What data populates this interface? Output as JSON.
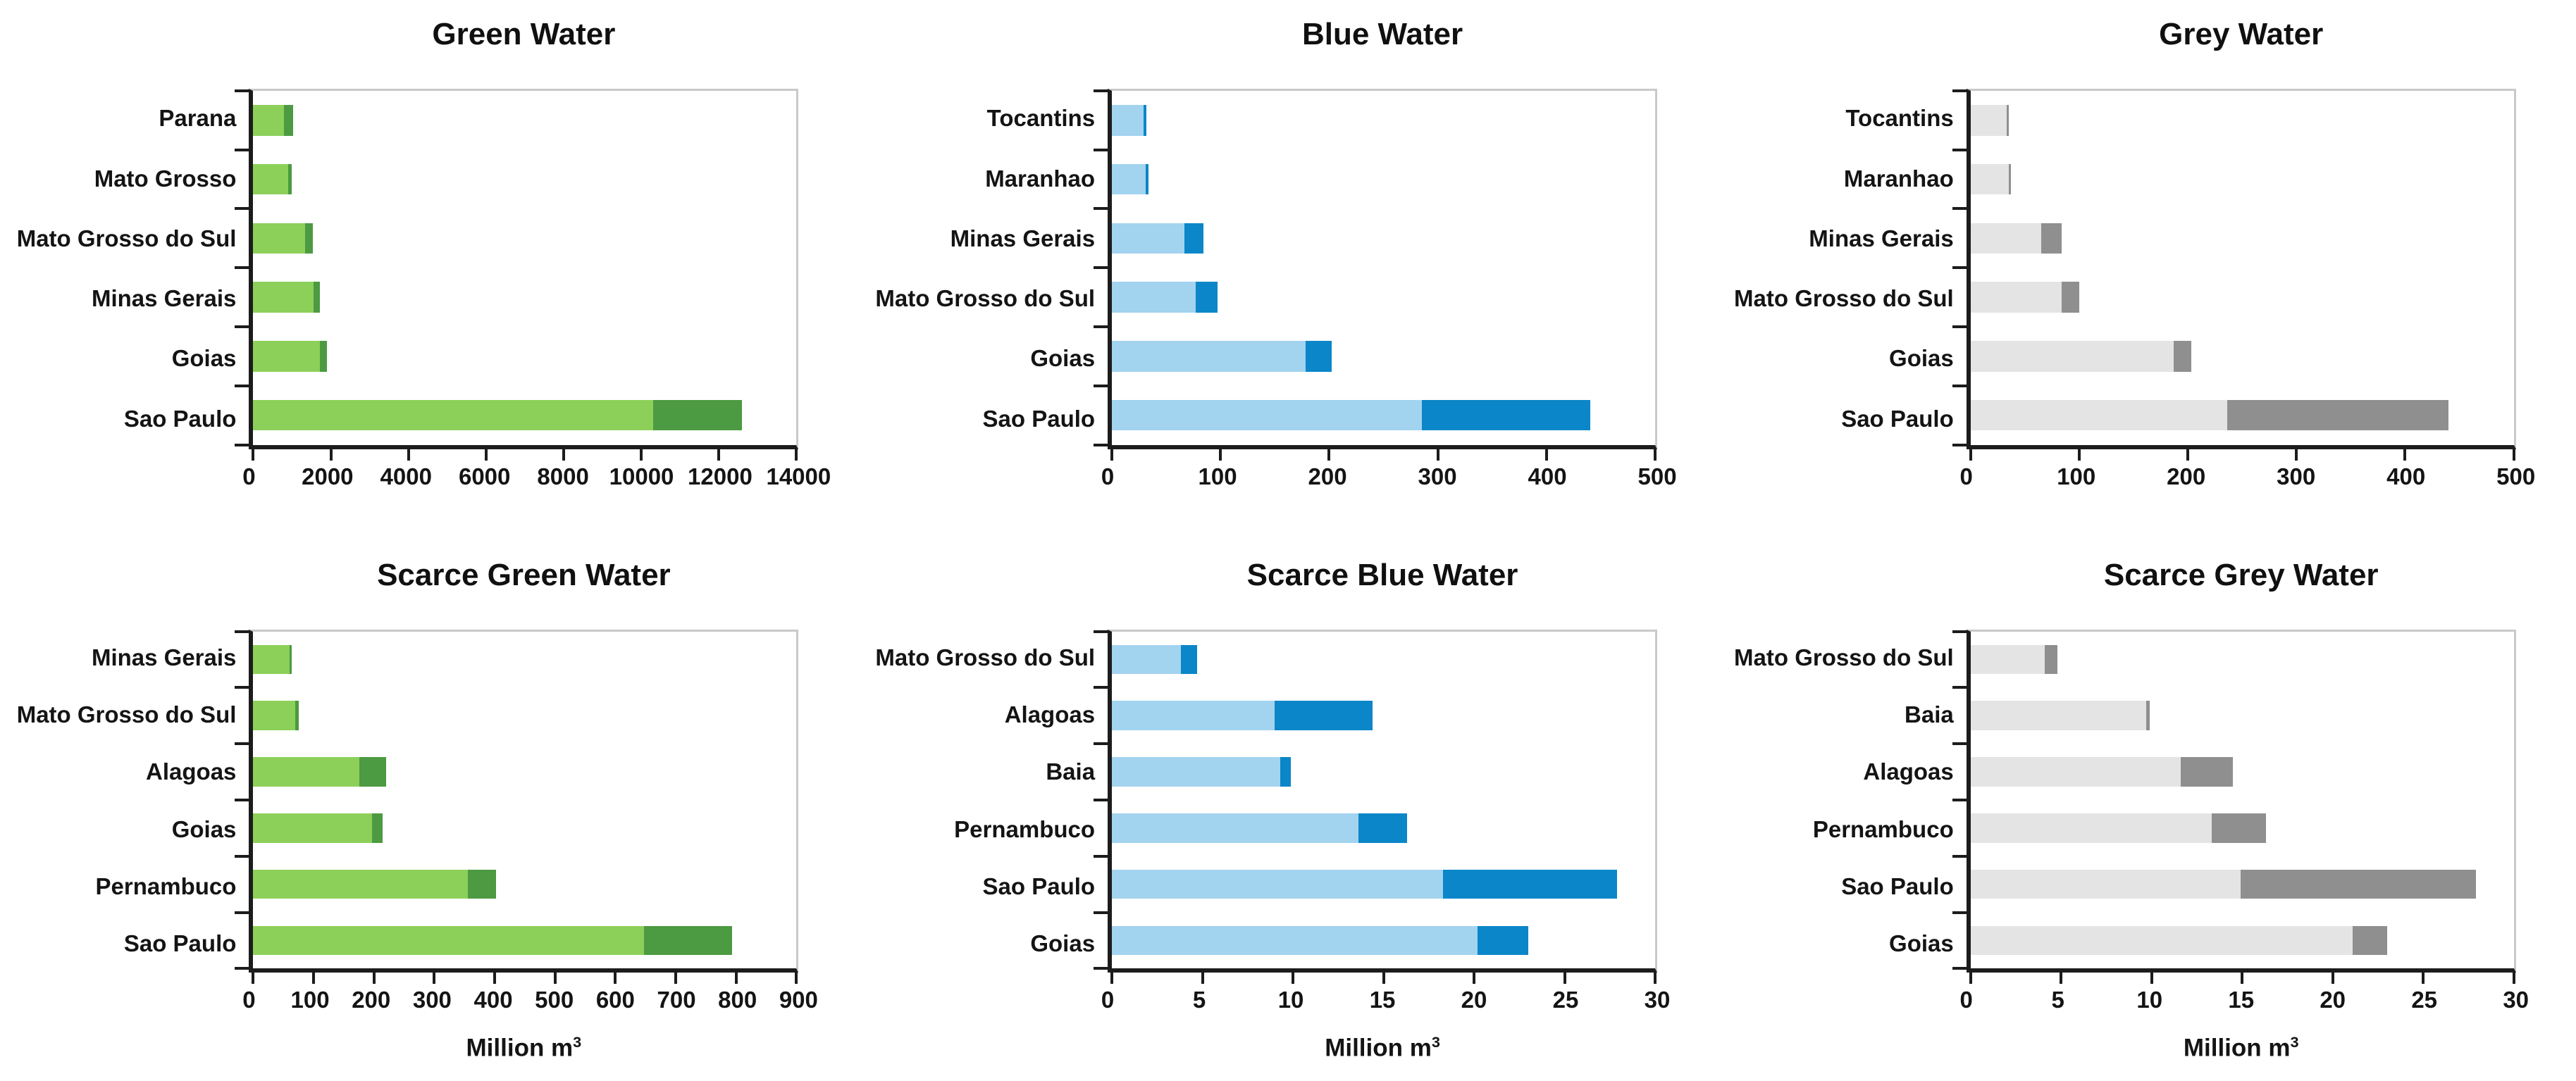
{
  "page": {
    "background": "#ffffff",
    "text_color": "#141414",
    "axis_color": "#1c1c1c",
    "plot_border_color": "#c9c9c9"
  },
  "unit_label": {
    "text": "Million m",
    "sup": "3"
  },
  "chart_data": [
    {
      "id": "green-water",
      "type": "bar",
      "orientation": "horizontal",
      "title": "Green Water",
      "grid": false,
      "legend": null,
      "colors": {
        "light": "#8cd05a",
        "dark": "#4c9a41"
      },
      "xlim": [
        0,
        14000
      ],
      "xticks": [
        0,
        2000,
        4000,
        6000,
        8000,
        10000,
        12000,
        14000
      ],
      "xlabel": "",
      "categories": [
        "Parana",
        "Mato Grosso",
        "Mato Grosso do Sul",
        "Minas Gerais",
        "Goias",
        "Sao Paulo"
      ],
      "series": [
        {
          "name": "light-shade",
          "values": [
            800,
            900,
            1340,
            1550,
            1720,
            10300
          ]
        },
        {
          "name": "dark-shade",
          "values": [
            230,
            100,
            190,
            160,
            180,
            2300
          ]
        }
      ]
    },
    {
      "id": "blue-water",
      "type": "bar",
      "orientation": "horizontal",
      "title": "Blue Water",
      "grid": false,
      "legend": null,
      "colors": {
        "light": "#a2d3ef",
        "dark": "#0b86c8"
      },
      "xlim": [
        0,
        500
      ],
      "xticks": [
        0,
        100,
        200,
        300,
        400,
        500
      ],
      "xlabel": "",
      "categories": [
        "Tocantins",
        "Maranhao",
        "Minas Gerais",
        "Mato Grosso do Sul",
        "Goias",
        "Sao Paulo"
      ],
      "series": [
        {
          "name": "light-shade",
          "values": [
            29,
            31,
            67,
            77,
            178,
            285
          ]
        },
        {
          "name": "dark-shade",
          "values": [
            3,
            3,
            17,
            20,
            24,
            155
          ]
        }
      ]
    },
    {
      "id": "grey-water",
      "type": "bar",
      "orientation": "horizontal",
      "title": "Grey Water",
      "grid": false,
      "legend": null,
      "colors": {
        "light": "#e4e4e4",
        "dark": "#8f8f8f"
      },
      "xlim": [
        0,
        500
      ],
      "xticks": [
        0,
        100,
        200,
        300,
        400,
        500
      ],
      "xlabel": "",
      "categories": [
        "Tocantins",
        "Maranhao",
        "Minas Gerais",
        "Mato Grosso do Sul",
        "Goias",
        "Sao Paulo"
      ],
      "series": [
        {
          "name": "light-shade",
          "values": [
            33,
            35,
            65,
            84,
            187,
            236
          ]
        },
        {
          "name": "dark-shade",
          "values": [
            2,
            2,
            19,
            16,
            16,
            204
          ]
        }
      ]
    },
    {
      "id": "scarce-green-water",
      "type": "bar",
      "orientation": "horizontal",
      "title": "Scarce Green Water",
      "grid": false,
      "legend": null,
      "colors": {
        "light": "#8cd05a",
        "dark": "#4c9a41"
      },
      "xlim": [
        0,
        900
      ],
      "xticks": [
        0,
        100,
        200,
        300,
        400,
        500,
        600,
        700,
        800,
        900
      ],
      "xlabel": "Million m³",
      "categories": [
        "Minas Gerais",
        "Mato Grosso do Sul",
        "Alagoas",
        "Goias",
        "Pernambuco",
        "Sao Paulo"
      ],
      "series": [
        {
          "name": "light-shade",
          "values": [
            60,
            70,
            176,
            197,
            355,
            647
          ]
        },
        {
          "name": "dark-shade",
          "values": [
            4,
            5,
            44,
            17,
            47,
            146
          ]
        }
      ]
    },
    {
      "id": "scarce-blue-water",
      "type": "bar",
      "orientation": "horizontal",
      "title": "Scarce Blue Water",
      "grid": false,
      "legend": null,
      "colors": {
        "light": "#a2d3ef",
        "dark": "#0b86c8"
      },
      "xlim": [
        0,
        30
      ],
      "xticks": [
        0,
        5,
        10,
        15,
        20,
        25,
        30
      ],
      "xlabel": "Million m³",
      "categories": [
        "Mato Grosso do Sul",
        "Alagoas",
        "Baia",
        "Pernambuco",
        "Sao Paulo",
        "Goias"
      ],
      "series": [
        {
          "name": "light-shade",
          "values": [
            3.8,
            9.0,
            9.3,
            13.6,
            18.3,
            20.2
          ]
        },
        {
          "name": "dark-shade",
          "values": [
            0.9,
            5.4,
            0.6,
            2.7,
            9.6,
            2.8
          ]
        }
      ]
    },
    {
      "id": "scarce-grey-water",
      "type": "bar",
      "orientation": "horizontal",
      "title": "Scarce Grey Water",
      "grid": false,
      "legend": null,
      "colors": {
        "light": "#e4e4e4",
        "dark": "#8f8f8f"
      },
      "xlim": [
        0,
        30
      ],
      "xticks": [
        0,
        5,
        10,
        15,
        20,
        25,
        30
      ],
      "xlabel": "Million m³",
      "categories": [
        "Mato Grosso do Sul",
        "Baia",
        "Alagoas",
        "Pernambuco",
        "Sao Paulo",
        "Goias"
      ],
      "series": [
        {
          "name": "light-shade",
          "values": [
            4.1,
            9.7,
            11.6,
            13.3,
            14.9,
            21.1
          ]
        },
        {
          "name": "dark-shade",
          "values": [
            0.7,
            0.2,
            2.9,
            3.0,
            13.0,
            1.9
          ]
        }
      ]
    }
  ]
}
